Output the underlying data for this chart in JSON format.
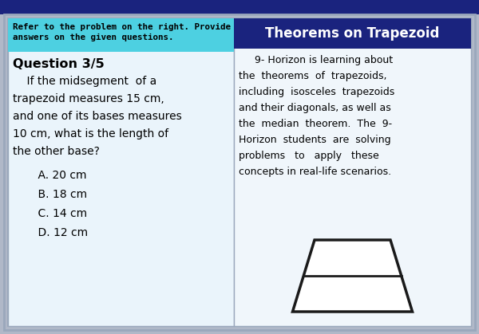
{
  "outer_bg": "#b0b8c8",
  "top_bar_bg": "#1a237e",
  "inner_bg": "#dce8f5",
  "left_panel_bg": "#eaf4fb",
  "right_panel_bg": "#f0f6fb",
  "header_left_bg": "#4dd0e1",
  "header_left_text_line1": "Refer to the problem on the right. Provide",
  "header_left_text_line2": "answers on the given questions.",
  "header_right_bg": "#1a237e",
  "header_right_text": "Theorems on Trapezoid",
  "question_label": "Question 3/5",
  "question_lines": [
    "    If the midsegment  of a",
    "trapezoid measures 15 cm,",
    "and one of its bases measures",
    "10 cm, what is the length of",
    "the other base?"
  ],
  "choices": [
    "    A. 20 cm",
    "    B. 18 cm",
    "    C. 14 cm",
    "    D. 12 cm"
  ],
  "right_body_lines": [
    "     9- Horizon is learning about",
    "the  theorems  of  trapezoids,",
    "including  isosceles  trapezoids",
    "and their diagonals, as well as",
    "the  median  theorem.  The  9-",
    "Horizon  students  are  solving",
    "problems   to   apply   these",
    "concepts in real-life scenarios."
  ],
  "trapezoid_color": "#1a1a1a",
  "trapezoid_fill": "#ffffff",
  "figsize": [
    6.0,
    4.19
  ],
  "dpi": 100
}
